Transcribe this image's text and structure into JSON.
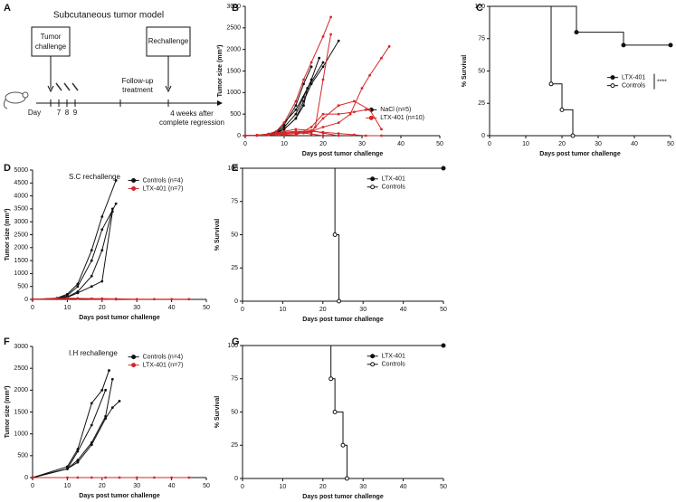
{
  "panel_labels": [
    "A",
    "B",
    "C",
    "D",
    "E",
    "F",
    "G"
  ],
  "diagram": {
    "title": "Subcutaneous tumor model",
    "tumor_challenge": [
      "Tumor",
      "challenge"
    ],
    "rechallenge": "Rechallenge",
    "follow_up": [
      "Follow-up",
      "treatment"
    ],
    "day": "Day",
    "days": [
      "7",
      "8",
      "9"
    ],
    "weeks": [
      "4 weeks after",
      "complete regression"
    ]
  },
  "chart_data": [
    {
      "type": "line",
      "xlabel": "Days post tumor challenge",
      "ylabel": "Tumor size (mm³)",
      "xlim": [
        0,
        50
      ],
      "xticks": [
        0,
        10,
        20,
        30,
        40,
        50
      ],
      "ylim": [
        0,
        3000
      ],
      "yticks": [
        0,
        500,
        1000,
        1500,
        2000,
        2500,
        3000
      ],
      "legend": "lower-right",
      "series": [
        {
          "name": "NaCl (n=5)",
          "color": "#111111",
          "mice": [
            {
              "x": [
                0,
                3,
                6,
                8,
                10,
                13,
                15,
                17
              ],
              "values": [
                0,
                10,
                30,
                80,
                250,
                700,
                1200,
                1600
              ]
            },
            {
              "x": [
                0,
                3,
                6,
                8,
                10,
                13,
                16,
                20
              ],
              "values": [
                0,
                10,
                40,
                100,
                300,
                600,
                1100,
                1700
              ]
            },
            {
              "x": [
                0,
                3,
                6,
                8,
                10,
                13,
                15,
                17,
                20,
                24
              ],
              "values": [
                0,
                10,
                30,
                60,
                150,
                400,
                800,
                1200,
                1600,
                2200
              ]
            },
            {
              "x": [
                0,
                3,
                6,
                8,
                10,
                13,
                15,
                17,
                19
              ],
              "values": [
                0,
                5,
                20,
                60,
                200,
                500,
                900,
                1300,
                1800
              ]
            },
            {
              "x": [
                0,
                3,
                6,
                8,
                10,
                13,
                15,
                16
              ],
              "values": [
                0,
                5,
                20,
                50,
                150,
                400,
                700,
                1100
              ]
            }
          ]
        },
        {
          "name": "LTX-401 (n=10)",
          "color": "#d62728",
          "mice": [
            {
              "x": [
                0,
                3,
                6,
                8,
                10,
                13,
                15,
                17,
                20,
                22
              ],
              "values": [
                0,
                10,
                40,
                100,
                300,
                800,
                1300,
                1700,
                2300,
                2750
              ]
            },
            {
              "x": [
                0,
                3,
                6,
                8,
                10,
                13,
                15,
                17,
                18,
                20,
                22
              ],
              "values": [
                0,
                10,
                20,
                30,
                40,
                50,
                60,
                80,
                200,
                1300,
                2350
              ]
            },
            {
              "x": [
                0,
                3,
                6,
                8,
                10,
                13,
                17,
                20,
                24,
                27,
                30,
                32,
                35,
                37
              ],
              "values": [
                0,
                10,
                20,
                40,
                60,
                80,
                100,
                200,
                300,
                500,
                1100,
                1400,
                1800,
                2070
              ]
            },
            {
              "x": [
                0,
                3,
                6,
                8,
                10,
                13,
                17,
                20,
                24,
                28,
                32,
                35
              ],
              "values": [
                0,
                10,
                20,
                30,
                40,
                50,
                100,
                400,
                700,
                800,
                600,
                150
              ]
            },
            {
              "x": [
                0,
                3,
                6,
                8,
                10,
                13,
                17,
                20,
                24,
                28,
                31
              ],
              "values": [
                0,
                10,
                20,
                30,
                20,
                10,
                200,
                500,
                500,
                550,
                600
              ]
            },
            {
              "x": [
                0,
                3,
                6,
                8,
                10,
                13,
                17,
                20,
                24,
                28,
                31,
                35
              ],
              "values": [
                0,
                10,
                30,
                50,
                80,
                100,
                100,
                80,
                50,
                20,
                0,
                0
              ]
            },
            {
              "x": [
                0,
                3,
                6,
                8,
                10,
                13,
                17,
                20,
                24
              ],
              "values": [
                0,
                10,
                30,
                60,
                100,
                150,
                120,
                60,
                0
              ]
            },
            {
              "x": [
                0,
                3,
                6,
                8,
                10,
                13,
                17,
                20
              ],
              "values": [
                0,
                5,
                20,
                40,
                60,
                80,
                40,
                0
              ]
            }
          ]
        }
      ]
    },
    {
      "type": "survival",
      "xlabel": "Days post tumor challenge",
      "ylabel": "% Survival",
      "xlim": [
        0,
        50
      ],
      "xticks": [
        0,
        10,
        20,
        30,
        40,
        50
      ],
      "ylim": [
        0,
        100
      ],
      "yticks": [
        0,
        25,
        50,
        75,
        100
      ],
      "legend": "center-right",
      "annotation": "****",
      "series": [
        {
          "name": "LTX-401",
          "color": "#111111",
          "marker": "filled",
          "x": [
            0,
            24,
            37,
            50
          ],
          "values": [
            100,
            80,
            70,
            70
          ]
        },
        {
          "name": "Controls",
          "color": "#111111",
          "marker": "open",
          "x": [
            0,
            17,
            20,
            23
          ],
          "values": [
            100,
            40,
            20,
            0
          ]
        }
      ]
    },
    {
      "type": "line",
      "title": "S.C rechallenge",
      "xlabel": "Days post tumor challenge",
      "ylabel": "Tumor size (mm³)",
      "xlim": [
        0,
        50
      ],
      "xticks": [
        0,
        10,
        20,
        30,
        40,
        50
      ],
      "ylim": [
        0,
        5000
      ],
      "yticks": [
        0,
        500,
        1000,
        1500,
        2000,
        2500,
        3000,
        3500,
        4000,
        4500,
        5000
      ],
      "legend": "upper-center",
      "series": [
        {
          "name": "Controls (n=4)",
          "color": "#111111",
          "mice": [
            {
              "x": [
                0,
                7,
                10,
                13,
                17,
                20,
                24
              ],
              "values": [
                0,
                50,
                200,
                600,
                1900,
                3200,
                4600
              ]
            },
            {
              "x": [
                0,
                7,
                10,
                13,
                17,
                20,
                24
              ],
              "values": [
                0,
                30,
                150,
                500,
                1500,
                2700,
                3700
              ]
            },
            {
              "x": [
                0,
                7,
                10,
                13,
                17,
                20,
                23
              ],
              "values": [
                0,
                30,
                100,
                300,
                900,
                1900,
                3500
              ]
            },
            {
              "x": [
                0,
                7,
                10,
                13,
                17,
                20,
                23
              ],
              "values": [
                0,
                20,
                80,
                250,
                500,
                700,
                3400
              ]
            }
          ]
        },
        {
          "name": "LTX-401 (n=7)",
          "color": "#d62728",
          "mice": [
            {
              "x": [
                0,
                7,
                10,
                13,
                17,
                20,
                24,
                30,
                35,
                40,
                45
              ],
              "values": [
                0,
                40,
                50,
                40,
                30,
                30,
                20,
                10,
                10,
                10,
                10
              ]
            },
            {
              "x": [
                0,
                7,
                10,
                13,
                17,
                20,
                24
              ],
              "values": [
                0,
                20,
                30,
                30,
                20,
                10,
                0
              ]
            }
          ]
        }
      ]
    },
    {
      "type": "survival",
      "xlabel": "Days post tumor challenge",
      "ylabel": "% Survival",
      "xlim": [
        0,
        50
      ],
      "xticks": [
        0,
        10,
        20,
        30,
        40,
        50
      ],
      "ylim": [
        0,
        100
      ],
      "yticks": [
        0,
        25,
        50,
        75,
        100
      ],
      "legend": "upper-right",
      "series": [
        {
          "name": "LTX-401",
          "color": "#111111",
          "marker": "filled",
          "x": [
            0,
            50
          ],
          "values": [
            100,
            100
          ]
        },
        {
          "name": "Controls",
          "color": "#111111",
          "marker": "open",
          "x": [
            0,
            23,
            24
          ],
          "values": [
            100,
            50,
            0
          ]
        }
      ]
    },
    {
      "type": "line",
      "title": "I.H rechallenge",
      "xlabel": "Days post tumor challenge",
      "ylabel": "Tumor size (mm³)",
      "xlim": [
        0,
        50
      ],
      "xticks": [
        0,
        10,
        20,
        30,
        40,
        50
      ],
      "ylim": [
        0,
        3000
      ],
      "yticks": [
        0,
        500,
        1000,
        1500,
        2000,
        2500,
        3000
      ],
      "legend": "upper-center",
      "series": [
        {
          "name": "Controls (n=4)",
          "color": "#111111",
          "mice": [
            {
              "x": [
                0,
                10,
                13,
                17,
                20,
                22
              ],
              "values": [
                0,
                250,
                650,
                1700,
                2000,
                2450
              ]
            },
            {
              "x": [
                0,
                10,
                13,
                17,
                21
              ],
              "values": [
                0,
                200,
                600,
                1200,
                2000
              ]
            },
            {
              "x": [
                0,
                10,
                13,
                17,
                21,
                23
              ],
              "values": [
                0,
                200,
                400,
                800,
                1400,
                2250
              ]
            },
            {
              "x": [
                0,
                10,
                13,
                17,
                21,
                23,
                25
              ],
              "values": [
                0,
                200,
                350,
                750,
                1350,
                1600,
                1750
              ]
            }
          ]
        },
        {
          "name": "LTX-401 (n=7)",
          "color": "#d62728",
          "mice": [
            {
              "x": [
                0,
                10,
                13,
                17,
                21,
                25,
                30,
                35,
                40,
                45
              ],
              "values": [
                0,
                0,
                0,
                0,
                0,
                0,
                0,
                0,
                0,
                0
              ]
            }
          ]
        }
      ]
    },
    {
      "type": "survival",
      "xlabel": "Days post tumor challenge",
      "ylabel": "% Survival",
      "xlim": [
        0,
        50
      ],
      "xticks": [
        0,
        10,
        20,
        30,
        40,
        50
      ],
      "ylim": [
        0,
        100
      ],
      "yticks": [
        0,
        25,
        50,
        75,
        100
      ],
      "legend": "upper-right",
      "series": [
        {
          "name": "LTX-401",
          "color": "#111111",
          "marker": "filled",
          "x": [
            0,
            50
          ],
          "values": [
            100,
            100
          ]
        },
        {
          "name": "Controls",
          "color": "#111111",
          "marker": "open",
          "x": [
            0,
            22,
            23,
            25,
            26
          ],
          "values": [
            100,
            75,
            50,
            25,
            0
          ]
        }
      ]
    }
  ]
}
